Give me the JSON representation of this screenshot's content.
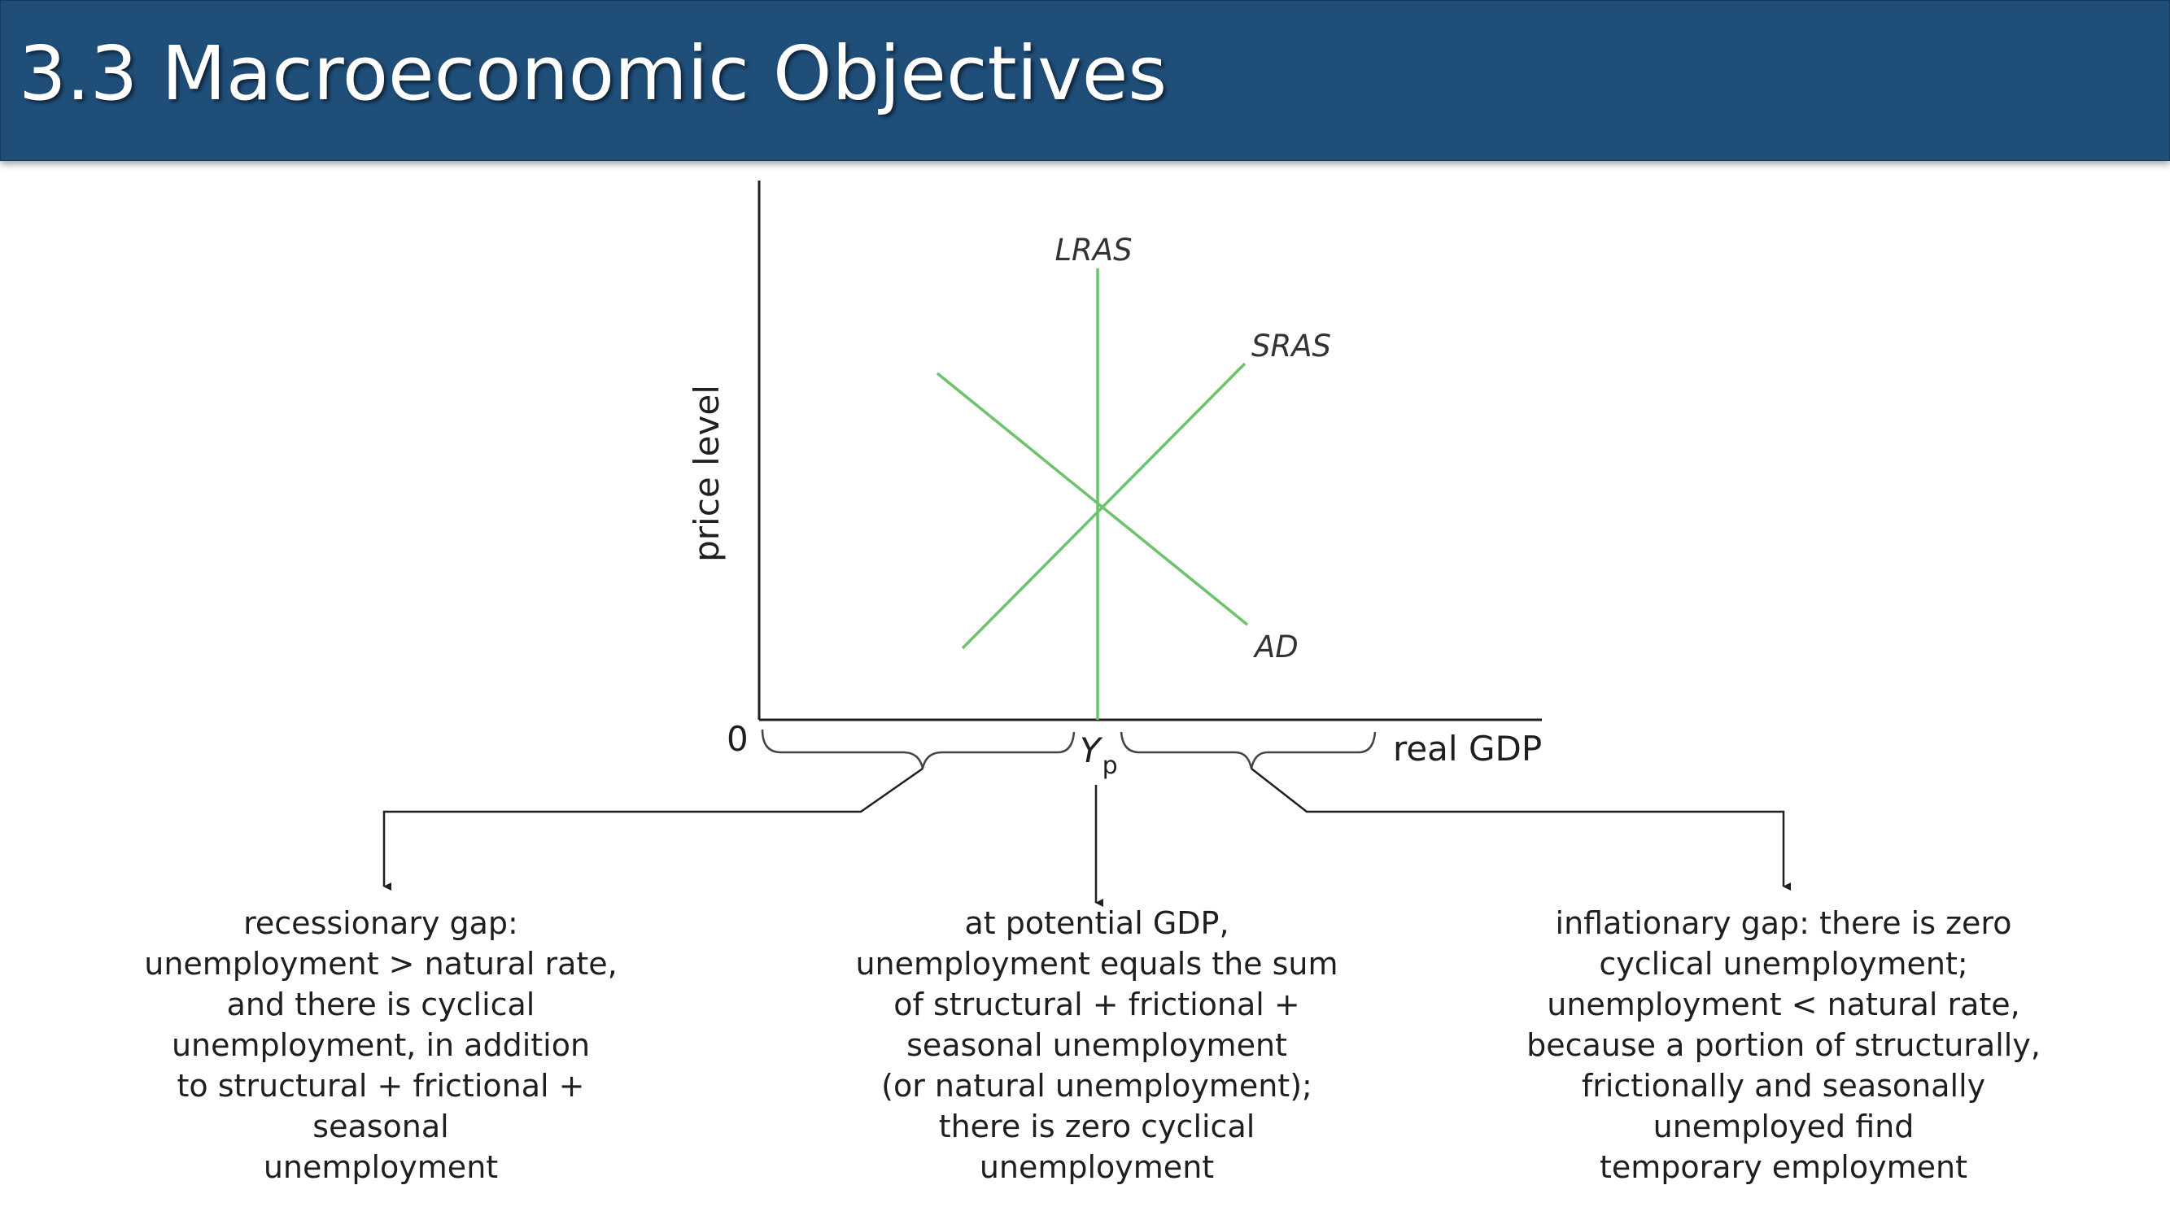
{
  "slide": {
    "title": "3.3 Macroeconomic Objectives"
  },
  "diagram": {
    "y_axis_label": "price level",
    "x_axis_label": "real GDP",
    "origin_label": "0",
    "curves": {
      "lras": "LRAS",
      "sras": "SRAS",
      "ad": "AD"
    },
    "potential_output": {
      "symbol": "Y",
      "subscript": "p"
    },
    "colors": {
      "curves": "#6cc36c",
      "axes": "#1f1f1f",
      "header": "#1f4e79"
    }
  },
  "notes": {
    "recessionary": "recessionary gap:\nunemployment > natural rate,\nand there is cyclical\nunemployment, in addition\nto structural + frictional + seasonal\nunemployment",
    "potential": "at potential GDP,\nunemployment equals the sum\nof structural + frictional +\nseasonal unemployment\n(or natural unemployment);\nthere is zero cyclical\nunemployment",
    "inflationary": "inflationary gap: there is zero\ncyclical unemployment;\nunemployment < natural rate,\nbecause a portion of structurally,\nfrictionally and seasonally\nunemployed find\ntemporary employment"
  }
}
